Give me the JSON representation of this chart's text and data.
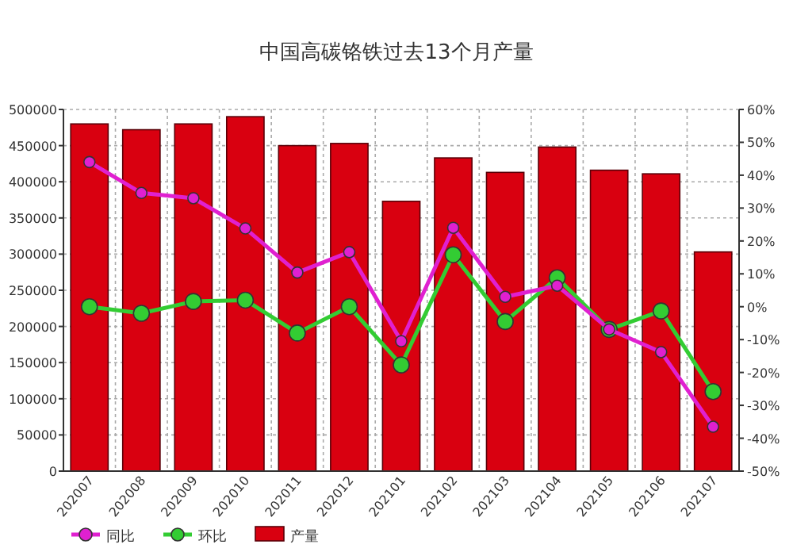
{
  "chart_data": {
    "type": "bar",
    "title": "中国高碳铬铁过去13个月产量",
    "categories": [
      "202007",
      "202008",
      "202009",
      "202010",
      "202011",
      "202012",
      "202101",
      "202102",
      "202103",
      "202104",
      "202105",
      "202106",
      "202107"
    ],
    "series": [
      {
        "name": "同比",
        "type": "line",
        "axis": "y2",
        "color": "#e020d0",
        "values": [
          44,
          34.6,
          33,
          23.8,
          10.4,
          16.6,
          -10.5,
          24,
          3,
          6.4,
          -6.9,
          -13.8,
          -36.5
        ]
      },
      {
        "name": "环比",
        "type": "line",
        "axis": "y2",
        "color": "#33cc33",
        "values": [
          0,
          -2,
          1.6,
          2,
          -8,
          0,
          -17.7,
          15.8,
          -4.5,
          8.8,
          -6.9,
          -1.3,
          -25.8
        ]
      },
      {
        "name": "产量",
        "color": "#d90010",
        "values": [
          480000,
          472000,
          480000,
          490000,
          450000,
          453000,
          373000,
          433000,
          413000,
          448000,
          416000,
          411000,
          303000
        ]
      }
    ],
    "ylim": [
      0,
      500000
    ],
    "yticks": [
      0,
      50000,
      100000,
      150000,
      200000,
      250000,
      300000,
      350000,
      400000,
      450000,
      500000
    ],
    "y2lim": [
      -50,
      60
    ],
    "y2ticks": [
      {
        "value": -50,
        "label": "-50%"
      },
      {
        "value": -40,
        "label": "-40%"
      },
      {
        "value": -30,
        "label": "-30%"
      },
      {
        "value": -20,
        "label": "-20%"
      },
      {
        "value": -10,
        "label": "-10%"
      },
      {
        "value": 0,
        "label": "0%"
      },
      {
        "value": 10,
        "label": "10%"
      },
      {
        "value": 20,
        "label": "20%"
      },
      {
        "value": 30,
        "label": "30%"
      },
      {
        "value": 40,
        "label": "40%"
      },
      {
        "value": 50,
        "label": "50%"
      },
      {
        "value": 60,
        "label": "60%"
      }
    ],
    "grid": true,
    "legend": "bottom left",
    "marker": "circle"
  }
}
